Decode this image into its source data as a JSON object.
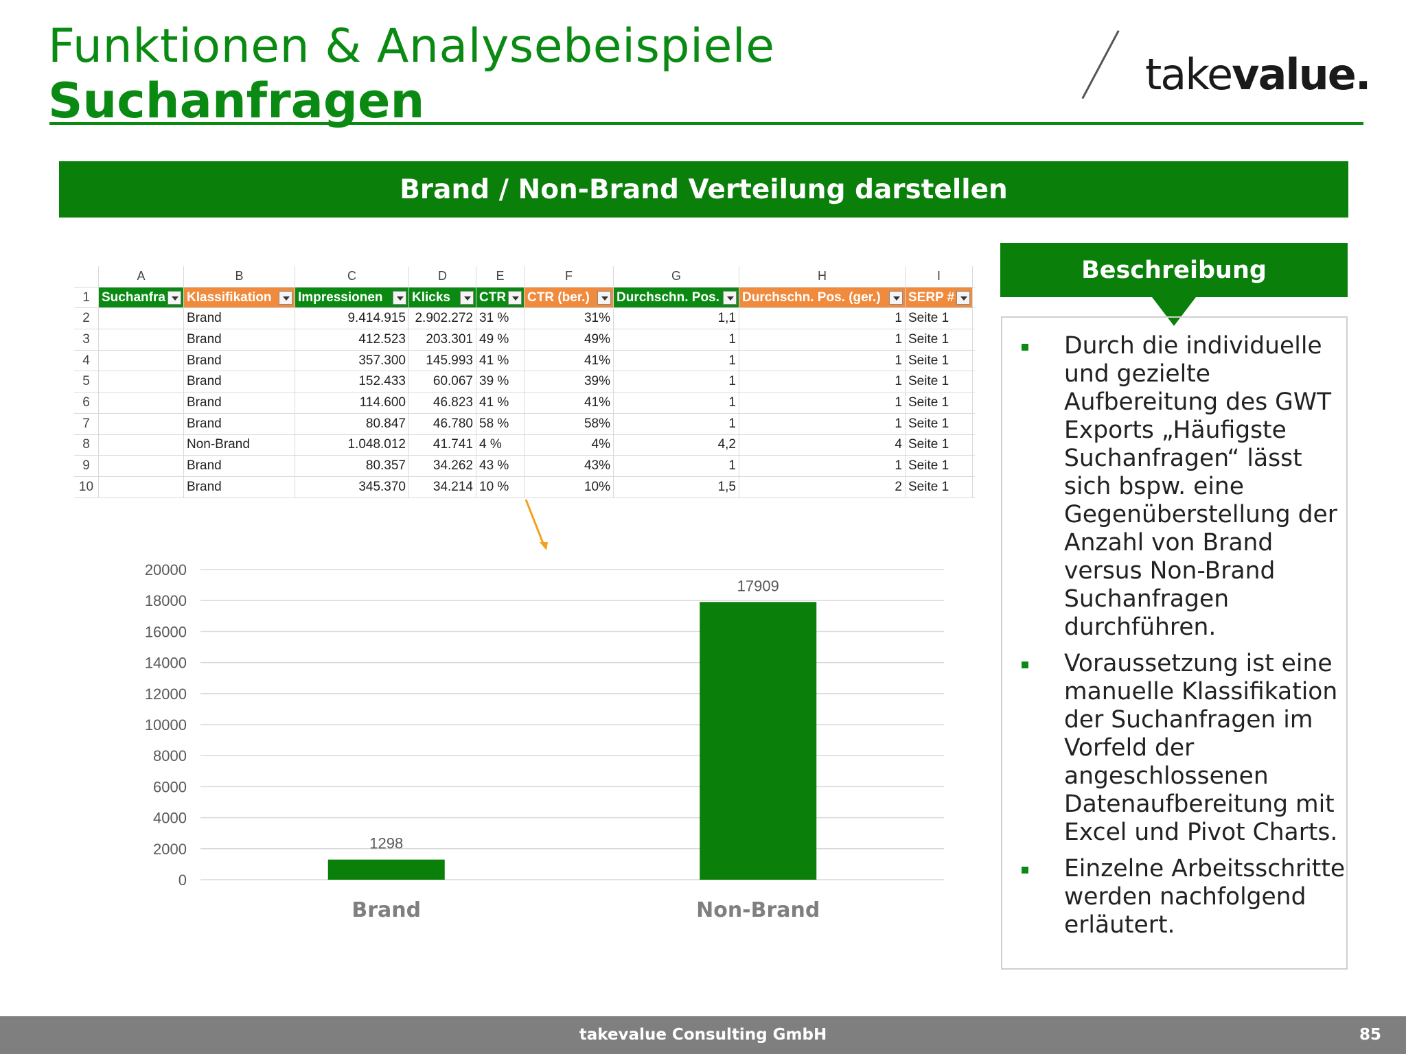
{
  "header": {
    "title_line1": "Funktionen & Analysebeispiele",
    "title_line2": "Suchanfragen",
    "logo_text_light": "take",
    "logo_text_bold": "value."
  },
  "banner": {
    "title": "Brand / Non-Brand Verteilung darstellen"
  },
  "spreadsheet": {
    "column_letters": [
      "A",
      "B",
      "C",
      "D",
      "E",
      "F",
      "G",
      "H",
      "I"
    ],
    "headers": [
      "Suchanfra",
      "Klassifikation",
      "Impressionen",
      "Klicks",
      "CTR",
      "CTR (ber.)",
      "Durchschn. Pos.",
      "Durchschn. Pos. (ger.)",
      "SERP #"
    ],
    "header_colors": [
      "#0a8a12",
      "#f08a3c",
      "#0a8a12",
      "#0a8a12",
      "#0a8a12",
      "#f08a3c",
      "#0a8a12",
      "#f08a3c",
      "#f08a3c"
    ],
    "rows": [
      {
        "n": "2",
        "cells": [
          "",
          "Brand",
          "9.414.915",
          "2.902.272",
          "31 %",
          "31%",
          "1,1",
          "1",
          "Seite 1"
        ]
      },
      {
        "n": "3",
        "cells": [
          "",
          "Brand",
          "412.523",
          "203.301",
          "49 %",
          "49%",
          "1",
          "1",
          "Seite 1"
        ]
      },
      {
        "n": "4",
        "cells": [
          "",
          "Brand",
          "357.300",
          "145.993",
          "41 %",
          "41%",
          "1",
          "1",
          "Seite 1"
        ]
      },
      {
        "n": "5",
        "cells": [
          "",
          "Brand",
          "152.433",
          "60.067",
          "39 %",
          "39%",
          "1",
          "1",
          "Seite 1"
        ]
      },
      {
        "n": "6",
        "cells": [
          "",
          "Brand",
          "114.600",
          "46.823",
          "41 %",
          "41%",
          "1",
          "1",
          "Seite 1"
        ]
      },
      {
        "n": "7",
        "cells": [
          "",
          "Brand",
          "80.847",
          "46.780",
          "58 %",
          "58%",
          "1",
          "1",
          "Seite 1"
        ]
      },
      {
        "n": "8",
        "cells": [
          "",
          "Non-Brand",
          "1.048.012",
          "41.741",
          "4 %",
          "4%",
          "4,2",
          "4",
          "Seite 1"
        ]
      },
      {
        "n": "9",
        "cells": [
          "",
          "Brand",
          "80.357",
          "34.262",
          "43 %",
          "43%",
          "1",
          "1",
          "Seite 1"
        ]
      },
      {
        "n": "10",
        "cells": [
          "",
          "Brand",
          "345.370",
          "34.214",
          "10 %",
          "10%",
          "1,5",
          "2",
          "Seite 1"
        ]
      }
    ]
  },
  "chart_data": {
    "type": "bar",
    "categories": [
      "Brand",
      "Non-Brand"
    ],
    "values": [
      1298,
      17909
    ],
    "data_labels": [
      "1298",
      "17909"
    ],
    "y_ticks": [
      0,
      2000,
      4000,
      6000,
      8000,
      10000,
      12000,
      14000,
      16000,
      18000,
      20000
    ],
    "ylim": [
      0,
      20000
    ],
    "grid": true,
    "bar_color": "#0a7f0a"
  },
  "description": {
    "title": "Beschreibung",
    "bullets": [
      "Durch die individuelle und gezielte Aufbereitung des GWT Exports „Häufigste Suchanfragen“ lässt sich bspw. eine Gegenüberstellung der Anzahl von Brand versus Non-Brand Suchanfragen durchführen.",
      "Voraussetzung ist eine manuelle Klassifikation der Suchanfragen im Vorfeld der angeschlossenen Datenaufbereitung mit Excel und Pivot Charts.",
      "Einzelne Arbeitsschritte werden nachfolgend erläutert."
    ]
  },
  "footer": {
    "company": "takevalue Consulting GmbH",
    "page_number": "85"
  }
}
